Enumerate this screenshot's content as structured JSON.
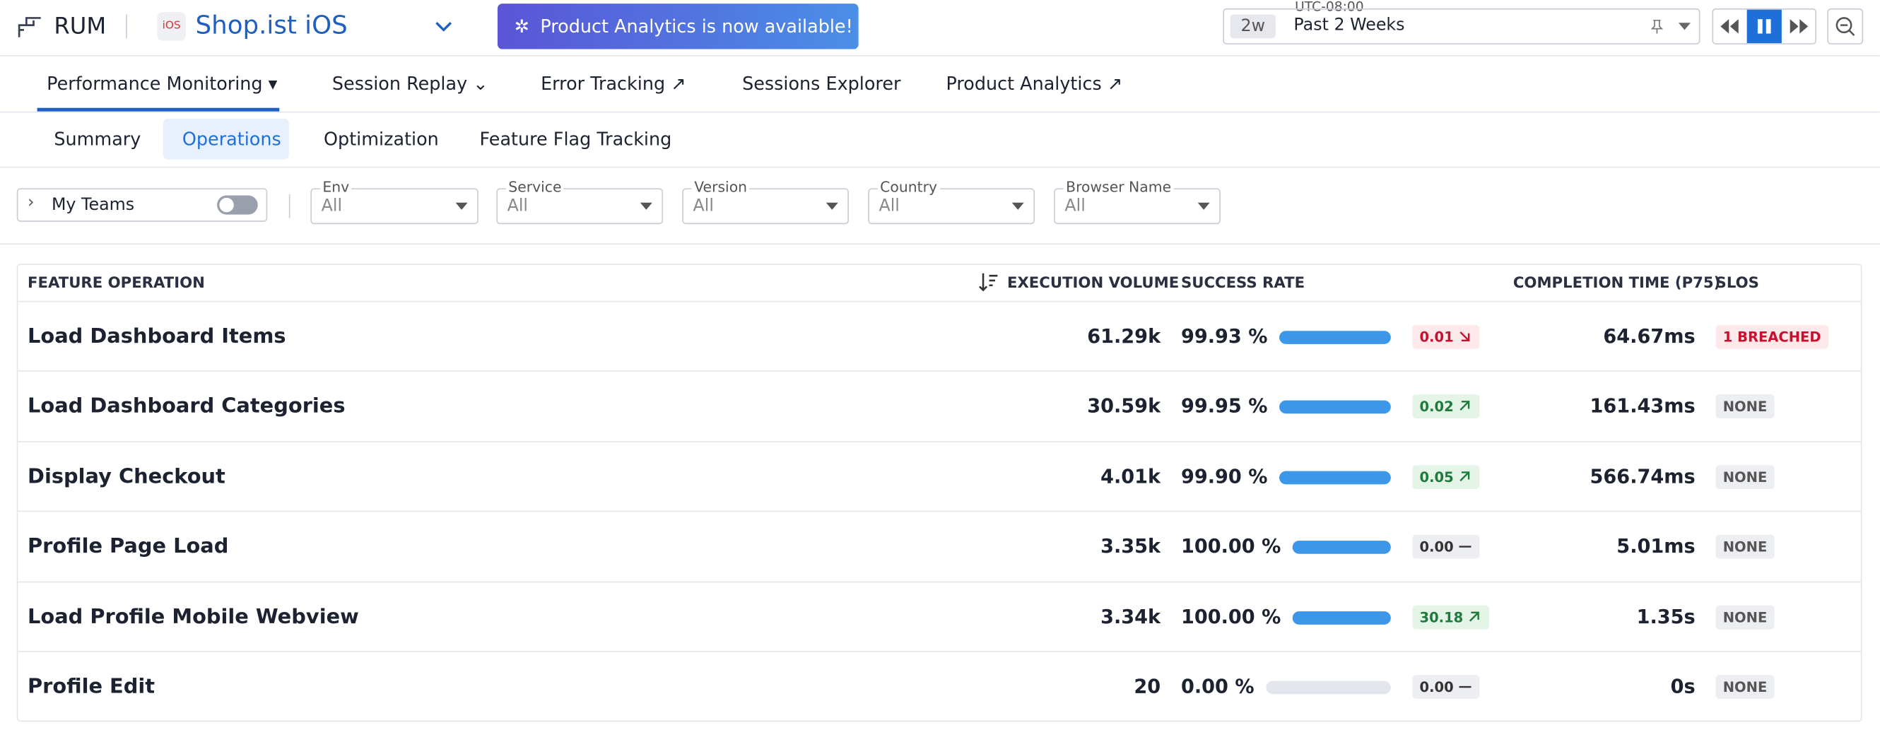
{
  "header": {
    "product": "RUM",
    "app_badge": "iOS",
    "app_name": "Shop.ist iOS",
    "banner": "Product Analytics is now available!",
    "timezone": "UTC-08:00",
    "time_chip": "2w",
    "time_range": "Past 2 Weeks"
  },
  "nav": [
    "Performance Monitoring",
    "Session Replay",
    "Error Tracking",
    "Sessions Explorer",
    "Product Analytics"
  ],
  "subtabs": [
    "Summary",
    "Operations",
    "Optimization",
    "Feature Flag Tracking"
  ],
  "filters": {
    "teams": "My Teams",
    "dropdowns": [
      {
        "label": "Env",
        "value": "All"
      },
      {
        "label": "Service",
        "value": "All"
      },
      {
        "label": "Version",
        "value": "All"
      },
      {
        "label": "Country",
        "value": "All"
      },
      {
        "label": "Browser Name",
        "value": "All"
      }
    ]
  },
  "table": {
    "columns": [
      "FEATURE OPERATION",
      "EXECUTION VOLUME",
      "SUCCESS RATE",
      "COMPLETION TIME (P75)",
      "SLOS"
    ],
    "rows": [
      {
        "name": "Load Dashboard Items",
        "volume": "61.29k",
        "success_rate": "99.93 %",
        "delta": "0.01",
        "trend": "down",
        "completion": "64.67ms",
        "slo": "1 BREACHED"
      },
      {
        "name": "Load Dashboard Categories",
        "volume": "30.59k",
        "success_rate": "99.95 %",
        "delta": "0.02",
        "trend": "up",
        "completion": "161.43ms",
        "slo": "NONE"
      },
      {
        "name": "Display Checkout",
        "volume": "4.01k",
        "success_rate": "99.90 %",
        "delta": "0.05",
        "trend": "up",
        "completion": "566.74ms",
        "slo": "NONE"
      },
      {
        "name": "Profile Page Load",
        "volume": "3.35k",
        "success_rate": "100.00 %",
        "delta": "0.00",
        "trend": "flat",
        "completion": "5.01ms",
        "slo": "NONE"
      },
      {
        "name": "Load Profile Mobile Webview",
        "volume": "3.34k",
        "success_rate": "100.00 %",
        "delta": "30.18",
        "trend": "up",
        "completion": "1.35s",
        "slo": "NONE"
      },
      {
        "name": "Profile Edit",
        "volume": "20",
        "success_rate": "0.00 %",
        "delta": "0.00",
        "trend": "flat",
        "completion": "0s",
        "slo": "NONE"
      }
    ]
  }
}
